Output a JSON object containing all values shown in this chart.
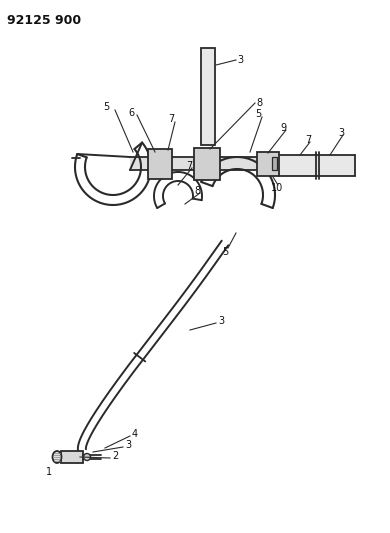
{
  "title": "92125 900",
  "bg_color": "#ffffff",
  "line_color": "#2a2a2a",
  "label_color": "#111111",
  "title_fontsize": 9,
  "label_fontsize": 7
}
